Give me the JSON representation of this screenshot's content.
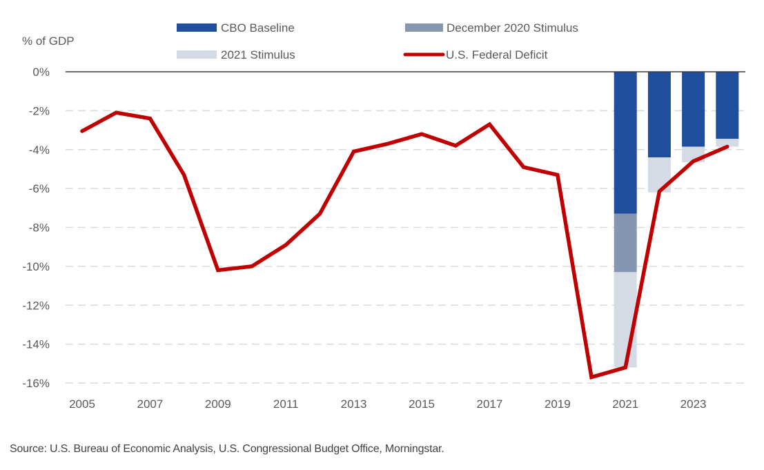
{
  "chart_data": {
    "type": "bar+line",
    "title": "",
    "ylabel": "% of GDP",
    "xlabel": "",
    "ylim": [
      -16,
      0
    ],
    "yticks": [
      0,
      -2,
      -4,
      -6,
      -8,
      -10,
      -12,
      -14,
      -16
    ],
    "ytick_labels": [
      "0%",
      "-2%",
      "-4%",
      "-6%",
      "-8%",
      "-10%",
      "-12%",
      "-14%",
      "-16%"
    ],
    "xlim": [
      2004.55,
      2024.6
    ],
    "xticks": [
      2005,
      2007,
      2009,
      2011,
      2013,
      2015,
      2017,
      2019,
      2021,
      2023
    ],
    "xtick_labels": [
      "2005",
      "2007",
      "2009",
      "2011",
      "2013",
      "2015",
      "2017",
      "2019",
      "2021",
      "2023"
    ],
    "grid": "horizontal-dashed",
    "legend": {
      "placement": "top",
      "items": [
        {
          "label": "CBO Baseline",
          "type": "bar",
          "color": "#1f4e9c"
        },
        {
          "label": "December 2020 Stimulus",
          "type": "bar",
          "color": "#8496b0"
        },
        {
          "label": "2021 Stimulus",
          "type": "bar",
          "color": "#d5dbe5"
        },
        {
          "label": "U.S. Federal Deficit",
          "type": "line",
          "color": "#c00000"
        }
      ]
    },
    "bars": {
      "categories": [
        2021,
        2022,
        2023,
        2024
      ],
      "series": [
        {
          "name": "CBO Baseline",
          "color": "#1f4e9c",
          "values": [
            -7.3,
            -4.4,
            -3.85,
            -3.45
          ]
        },
        {
          "name": "December 2020 Stimulus",
          "color": "#8496b0",
          "values": [
            -3.0,
            0,
            0,
            0
          ]
        },
        {
          "name": "2021 Stimulus",
          "color": "#d5dbe5",
          "values": [
            -4.9,
            -1.8,
            -0.8,
            -0.4
          ]
        }
      ]
    },
    "line": {
      "name": "U.S. Federal Deficit",
      "color": "#c00000",
      "x": [
        2005,
        2006,
        2007,
        2008,
        2009,
        2010,
        2011,
        2012,
        2013,
        2014,
        2015,
        2016,
        2017,
        2018,
        2019,
        2020,
        2021,
        2022,
        2023,
        2024
      ],
      "values": [
        -3.05,
        -2.1,
        -2.4,
        -5.3,
        -10.2,
        -10.0,
        -8.9,
        -7.3,
        -4.1,
        -3.7,
        -3.2,
        -3.8,
        -2.7,
        -4.9,
        -5.3,
        -15.7,
        -15.2,
        -6.15,
        -4.6,
        -3.85
      ]
    },
    "source": "Source: U.S. Bureau of Economic Analysis, U.S. Congressional Budget Office, Morningstar."
  }
}
